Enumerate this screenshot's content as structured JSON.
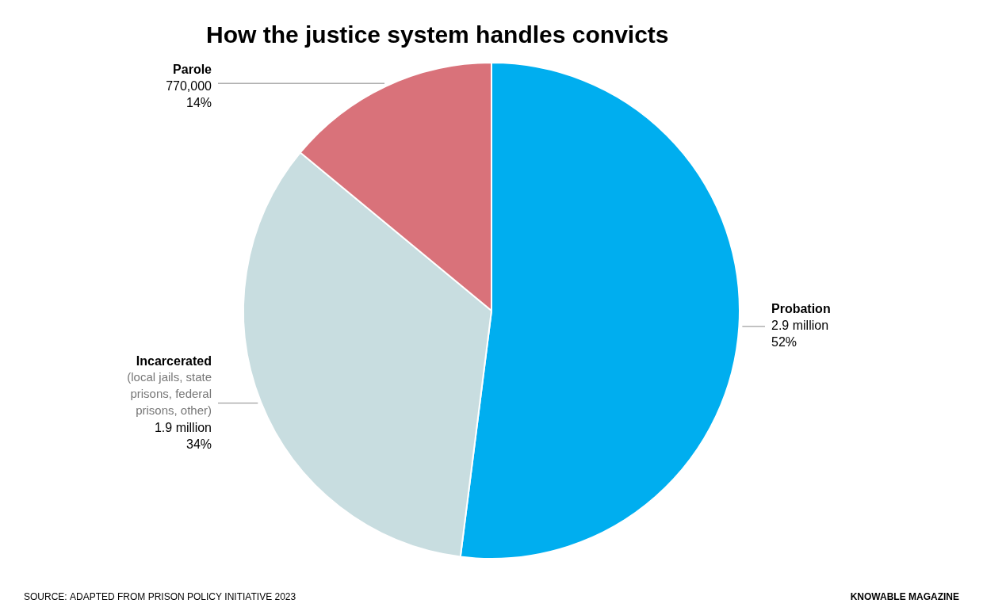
{
  "chart_data": {
    "type": "pie",
    "title": "How the justice system handles convicts",
    "categories": [
      "Probation",
      "Incarcerated",
      "Parole"
    ],
    "values": [
      52,
      34,
      14
    ],
    "value_labels": [
      "52%",
      "34%",
      "14%"
    ],
    "counts": [
      2900000,
      1900000,
      770000
    ],
    "count_labels": [
      "2.9 million",
      "1.9 million",
      "770,000"
    ],
    "colors": [
      "#00AEEF",
      "#C8DDE0",
      "#D9727A"
    ],
    "data_labels": true,
    "legend": false,
    "annotations": [
      {
        "category": "Incarcerated",
        "text": "(local jails, state\nprisons, federal\nprisons, other)"
      },
      {
        "text": "SOURCE: ADAPTED FROM PRISON POLICY INITIATIVE 2023"
      },
      {
        "text": "KNOWABLE MAGAZINE"
      }
    ]
  }
}
